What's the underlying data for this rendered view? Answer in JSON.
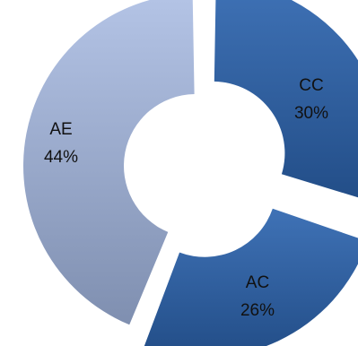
{
  "chart_data": {
    "type": "pie",
    "style": "exploded-donut",
    "categories": [
      "CC",
      "AC",
      "AE"
    ],
    "values": [
      30,
      26,
      44
    ],
    "labels": [
      {
        "name": "CC",
        "value": "30%"
      },
      {
        "name": "AC",
        "value": "26%"
      },
      {
        "name": "AE",
        "value": "44%"
      }
    ],
    "colors": {
      "CC": "#2f5e9e",
      "AC": "#2f5e9e",
      "AE": "#a9b9dc"
    },
    "legend": "none"
  }
}
